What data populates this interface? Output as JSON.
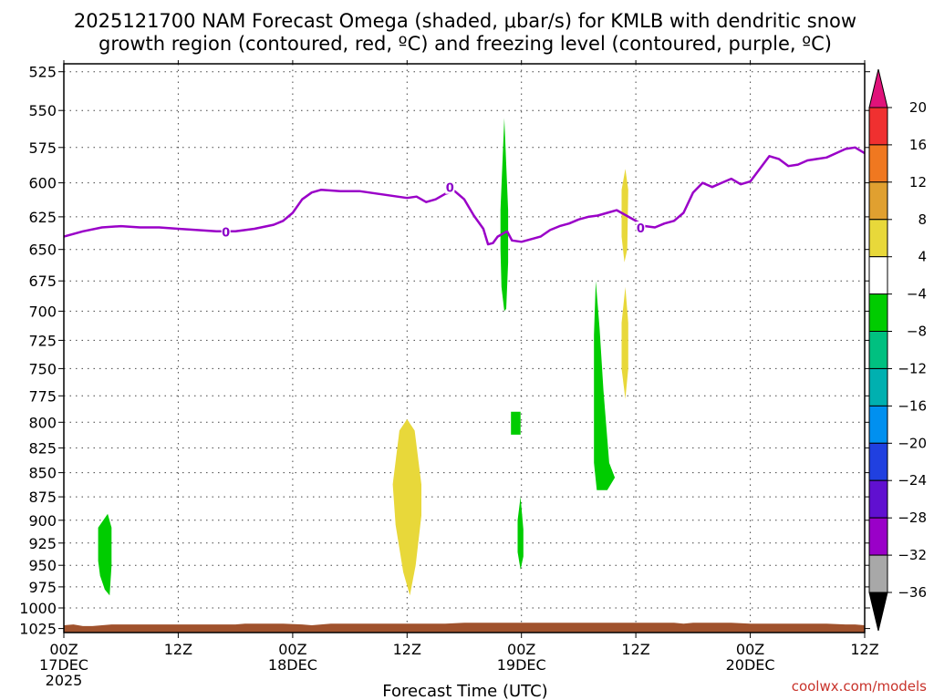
{
  "chart_data": {
    "type": "heatmap",
    "title_lines": [
      "2025121700 NAM Forecast Omega (shaded, μbar/s) for KMLB with dendritic snow",
      "growth region (contoured, red, ºC) and freezing level (contoured, purple, ºC)"
    ],
    "xlabel": "Forecast Time (UTC)",
    "ylabel": "",
    "x_unit": "forecast hour",
    "xlim": [
      0,
      84
    ],
    "ylim": [
      1030,
      520
    ],
    "y_ticks": [
      525,
      550,
      575,
      600,
      625,
      650,
      675,
      700,
      725,
      750,
      775,
      800,
      825,
      850,
      875,
      900,
      925,
      950,
      975,
      1000,
      1025
    ],
    "x_ticks": [
      {
        "hour": 0,
        "lines": [
          "00Z",
          "17DEC",
          "2025"
        ]
      },
      {
        "hour": 12,
        "lines": [
          "12Z"
        ]
      },
      {
        "hour": 24,
        "lines": [
          "00Z",
          "18DEC"
        ]
      },
      {
        "hour": 36,
        "lines": [
          "12Z"
        ]
      },
      {
        "hour": 48,
        "lines": [
          "00Z",
          "19DEC"
        ]
      },
      {
        "hour": 60,
        "lines": [
          "12Z"
        ]
      },
      {
        "hour": 72,
        "lines": [
          "00Z",
          "20DEC"
        ]
      },
      {
        "hour": 84,
        "lines": [
          "12Z"
        ]
      }
    ],
    "grid": true,
    "colorbar": {
      "levels": [
        "20",
        "16",
        "12",
        "8",
        "4",
        "−4",
        "−8",
        "−12",
        "−16",
        "−20",
        "−24",
        "−28",
        "−32",
        "−36"
      ],
      "top_arrow_color": "#e0127a",
      "bottom_arrow_color": "#000000",
      "colors": [
        "#f03030",
        "#f07820",
        "#e0a030",
        "#e8d83a",
        "#ffffff",
        "#00cc00",
        "#00c080",
        "#00b0b0",
        "#0090f0",
        "#2040e0",
        "#6010d0",
        "#9a00c8",
        "#a8a8a8"
      ]
    },
    "freezing_level": {
      "name": "0",
      "color": "#9a00c8",
      "label": "0",
      "label_points": [
        [
          17,
          637
        ],
        [
          40.5,
          604
        ],
        [
          60.5,
          634
        ]
      ],
      "points": [
        [
          0,
          640
        ],
        [
          2,
          636
        ],
        [
          4,
          633
        ],
        [
          6,
          632
        ],
        [
          8,
          633
        ],
        [
          10,
          633
        ],
        [
          12,
          634
        ],
        [
          14,
          635
        ],
        [
          16,
          636
        ],
        [
          18,
          636
        ],
        [
          20,
          634
        ],
        [
          22,
          631
        ],
        [
          23,
          628
        ],
        [
          24,
          622
        ],
        [
          25,
          612
        ],
        [
          26,
          607
        ],
        [
          27,
          605
        ],
        [
          29,
          606
        ],
        [
          31,
          606
        ],
        [
          32,
          607
        ],
        [
          33,
          608
        ],
        [
          34,
          609
        ],
        [
          35,
          610
        ],
        [
          36,
          611
        ],
        [
          37,
          610
        ],
        [
          38,
          614
        ],
        [
          39,
          612
        ],
        [
          40,
          608
        ],
        [
          41,
          606
        ],
        [
          42,
          612
        ],
        [
          43,
          624
        ],
        [
          44,
          634
        ],
        [
          44.5,
          646
        ],
        [
          45,
          645
        ],
        [
          45.5,
          640
        ],
        [
          46,
          638
        ],
        [
          46.5,
          636
        ],
        [
          47,
          643
        ],
        [
          48,
          644
        ],
        [
          49,
          642
        ],
        [
          50,
          640
        ],
        [
          51,
          635
        ],
        [
          52,
          632
        ],
        [
          53,
          630
        ],
        [
          54,
          627
        ],
        [
          55,
          625
        ],
        [
          56,
          624
        ],
        [
          57,
          622
        ],
        [
          58,
          620
        ],
        [
          59,
          624
        ],
        [
          60,
          628
        ],
        [
          61,
          632
        ],
        [
          62,
          633
        ],
        [
          63,
          630
        ],
        [
          64,
          628
        ],
        [
          65,
          622
        ],
        [
          66,
          607
        ],
        [
          67,
          600
        ],
        [
          68,
          603
        ],
        [
          69,
          600
        ],
        [
          70,
          597
        ],
        [
          71,
          601
        ],
        [
          72,
          599
        ],
        [
          73,
          590
        ],
        [
          74,
          581
        ],
        [
          75,
          583
        ],
        [
          76,
          588
        ],
        [
          77,
          587
        ],
        [
          78,
          584
        ],
        [
          79,
          583
        ],
        [
          80,
          582
        ],
        [
          81,
          579
        ],
        [
          82,
          576
        ],
        [
          83,
          575
        ],
        [
          84,
          579
        ]
      ]
    },
    "omega_regions": [
      {
        "level": "−4 to −8",
        "color": "#00cc00",
        "points": [
          [
            3.6,
            908
          ],
          [
            4.6,
            893
          ],
          [
            5.0,
            908
          ],
          [
            5.0,
            950
          ],
          [
            4.8,
            985
          ],
          [
            4.3,
            978
          ],
          [
            3.8,
            962
          ],
          [
            3.6,
            945
          ]
        ]
      },
      {
        "level": "4 to 8",
        "color": "#e8d83a",
        "points": [
          [
            34.5,
            862
          ],
          [
            35.2,
            808
          ],
          [
            36.0,
            797
          ],
          [
            36.8,
            808
          ],
          [
            37.5,
            862
          ],
          [
            37.5,
            895
          ],
          [
            36.9,
            950
          ],
          [
            36.3,
            985
          ],
          [
            35.6,
            958
          ],
          [
            34.8,
            905
          ]
        ]
      },
      {
        "level": "−4 to −8",
        "color": "#00cc00",
        "points": [
          [
            45.8,
            620
          ],
          [
            46.2,
            555
          ],
          [
            46.6,
            620
          ],
          [
            46.6,
            660
          ],
          [
            46.4,
            698
          ],
          [
            46.2,
            700
          ],
          [
            45.9,
            680
          ],
          [
            45.8,
            650
          ]
        ]
      },
      {
        "level": "−4 to −8",
        "color": "#00cc00",
        "points": [
          [
            46.9,
            790
          ],
          [
            47.9,
            790
          ],
          [
            47.9,
            812
          ],
          [
            46.9,
            812
          ]
        ]
      },
      {
        "level": "−4 to −8",
        "color": "#00cc00",
        "points": [
          [
            47.6,
            900
          ],
          [
            47.9,
            875
          ],
          [
            48.2,
            910
          ],
          [
            48.2,
            940
          ],
          [
            47.9,
            955
          ],
          [
            47.6,
            935
          ]
        ]
      },
      {
        "level": "−4 to −8",
        "color": "#00cc00",
        "points": [
          [
            55.6,
            720
          ],
          [
            55.8,
            675
          ],
          [
            56.2,
            715
          ],
          [
            56.6,
            770
          ],
          [
            57.2,
            840
          ],
          [
            57.8,
            855
          ],
          [
            57.0,
            868
          ],
          [
            55.9,
            868
          ],
          [
            55.6,
            840
          ]
        ]
      },
      {
        "level": "4 to 8",
        "color": "#e8d83a",
        "points": [
          [
            58.5,
            605
          ],
          [
            58.9,
            590
          ],
          [
            59.2,
            605
          ],
          [
            59.1,
            650
          ],
          [
            58.8,
            660
          ],
          [
            58.5,
            640
          ]
        ]
      },
      {
        "level": "4 to 8",
        "color": "#e8d83a",
        "points": [
          [
            58.5,
            710
          ],
          [
            58.9,
            680
          ],
          [
            59.2,
            710
          ],
          [
            59.2,
            750
          ],
          [
            58.9,
            778
          ],
          [
            58.5,
            750
          ]
        ]
      }
    ],
    "surface_fill": {
      "color": "#a0522d",
      "points": [
        [
          0,
          1021
        ],
        [
          1,
          1020
        ],
        [
          2,
          1022
        ],
        [
          3,
          1022
        ],
        [
          4,
          1021
        ],
        [
          5,
          1020
        ],
        [
          10,
          1020
        ],
        [
          18,
          1020
        ],
        [
          19,
          1019
        ],
        [
          23,
          1019
        ],
        [
          25,
          1020
        ],
        [
          26,
          1021
        ],
        [
          27,
          1020
        ],
        [
          28,
          1019
        ],
        [
          40,
          1019
        ],
        [
          42,
          1018
        ],
        [
          52,
          1018
        ],
        [
          64,
          1018
        ],
        [
          65,
          1019
        ],
        [
          66,
          1018
        ],
        [
          70,
          1018
        ],
        [
          72,
          1019
        ],
        [
          80,
          1019
        ],
        [
          82,
          1020
        ],
        [
          83,
          1020
        ],
        [
          84,
          1021
        ]
      ]
    },
    "credit": "coolwx.com/models"
  }
}
